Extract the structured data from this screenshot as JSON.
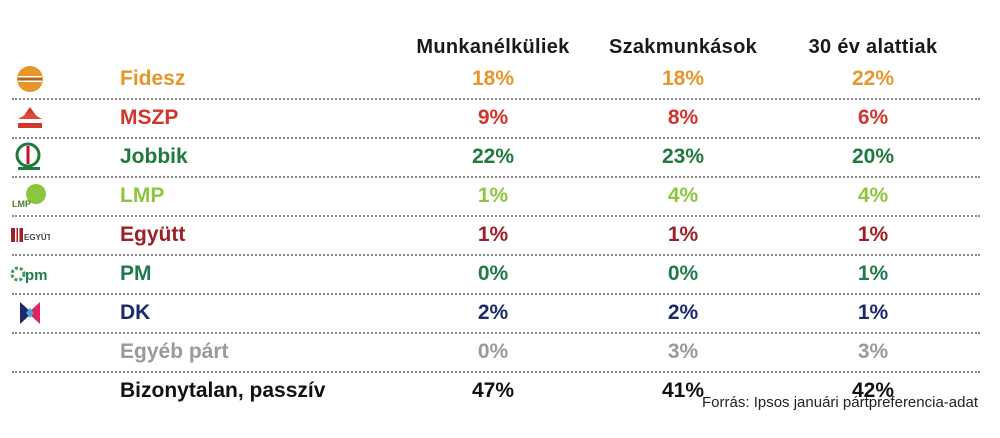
{
  "chart_data": {
    "type": "table",
    "columns": [
      "Munkanélküliek",
      "Szakmunkások",
      "30 év alattiak"
    ],
    "rows": [
      {
        "name": "Fidesz",
        "color": "#e8962a",
        "logo": "fidesz-logo",
        "values": [
          "18%",
          "18%",
          "22%"
        ]
      },
      {
        "name": "MSZP",
        "color": "#d2352b",
        "logo": "mszp-logo",
        "values": [
          "9%",
          "8%",
          "6%"
        ]
      },
      {
        "name": "Jobbik",
        "color": "#1e7a3c",
        "logo": "jobbik-logo",
        "values": [
          "22%",
          "23%",
          "20%"
        ]
      },
      {
        "name": "LMP",
        "color": "#8cc63f",
        "logo": "lmp-logo",
        "values": [
          "1%",
          "4%",
          "4%"
        ]
      },
      {
        "name": "Együtt",
        "color": "#9e1f27",
        "logo": "egyutt-logo",
        "values": [
          "1%",
          "1%",
          "1%"
        ]
      },
      {
        "name": "PM",
        "color": "#1f7a4d",
        "logo": "pm-logo",
        "values": [
          "0%",
          "0%",
          "1%"
        ]
      },
      {
        "name": "DK",
        "color": "#1b2a6b",
        "logo": "dk-logo",
        "values": [
          "2%",
          "2%",
          "1%"
        ]
      },
      {
        "name": "Egyéb párt",
        "color": "#9a9a9a",
        "logo": "",
        "values": [
          "0%",
          "3%",
          "3%"
        ]
      },
      {
        "name": "Bizonytalan, passzív",
        "color": "#111111",
        "logo": "",
        "values": [
          "47%",
          "41%",
          "42%"
        ]
      }
    ],
    "source": "Forrás: Ipsos januári pártpreferencia-adat"
  }
}
